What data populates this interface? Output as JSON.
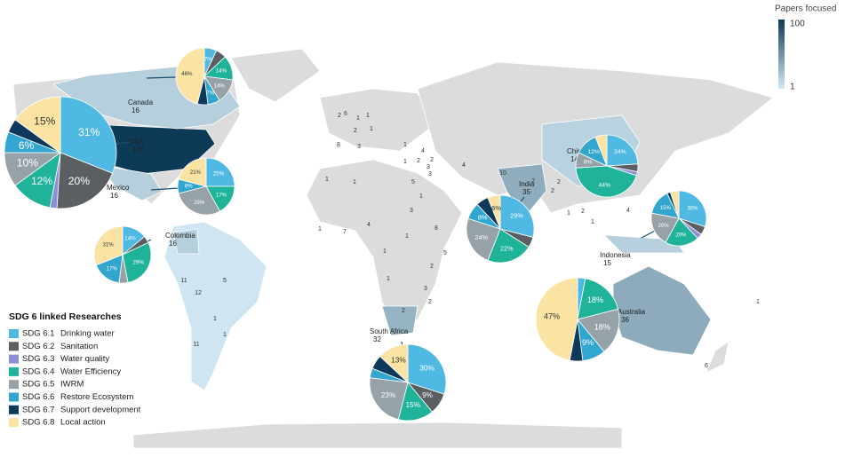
{
  "legend_scale": {
    "title": "Papers focused",
    "max": 100,
    "min": 1,
    "colors": [
      "#d3e9f4",
      "#0d3b57"
    ]
  },
  "legend": {
    "title": "SDG 6 linked Researches",
    "items": [
      {
        "code": "SDG 6.1",
        "label": "Drinking water",
        "color": "#4fb9e3"
      },
      {
        "code": "SDG 6.2",
        "label": "Sanitation",
        "color": "#5b5f62"
      },
      {
        "code": "SDG 6.3",
        "label": "Water quality",
        "color": "#8c8fd6"
      },
      {
        "code": "SDG 6.4",
        "label": "Water Efficiency",
        "color": "#1fb39a"
      },
      {
        "code": "SDG 6.5",
        "label": "IWRM",
        "color": "#97a1a8"
      },
      {
        "code": "SDG 6.6",
        "label": "Restore Ecosystem",
        "color": "#32a6cf"
      },
      {
        "code": "SDG 6.7",
        "label": "Support development",
        "color": "#0d3a5a"
      },
      {
        "code": "SDG 6.8",
        "label": "Local action",
        "color": "#fbe3a3"
      }
    ]
  },
  "countries": [
    {
      "name": "USA",
      "count": 100,
      "pie": {
        "values": [
          31,
          20,
          2,
          12,
          10,
          6,
          4,
          15
        ],
        "value_labels": [
          "31%",
          "20%",
          null,
          "12%",
          "10%",
          "6%",
          null,
          "15%"
        ]
      }
    },
    {
      "name": "Canada",
      "count": 16,
      "pie": {
        "values": [
          7,
          6,
          null,
          14,
          14,
          7,
          6,
          46
        ],
        "value_labels": [
          "7%",
          null,
          null,
          "14%",
          "14%",
          "7%",
          null,
          "46%"
        ]
      }
    },
    {
      "name": "Mexico",
      "count": 16,
      "pie": {
        "values": [
          25,
          null,
          null,
          17,
          29,
          8,
          null,
          21
        ],
        "value_labels": [
          "25%",
          null,
          null,
          "17%",
          "29%",
          "8%",
          null,
          "21%"
        ]
      }
    },
    {
      "name": "Colombia",
      "count": 16,
      "pie": {
        "values": [
          14,
          4,
          null,
          29,
          5,
          17,
          null,
          31
        ],
        "value_labels": [
          "14%",
          null,
          null,
          "29%",
          null,
          "17%",
          null,
          "31%"
        ]
      }
    },
    {
      "name": "China",
      "count": 14,
      "pie": {
        "values": [
          24,
          4,
          2,
          44,
          8,
          12,
          null,
          6
        ],
        "value_labels": [
          "24%",
          null,
          null,
          "44%",
          "8%",
          "12%",
          null,
          null
        ]
      }
    },
    {
      "name": "India",
      "count": 35,
      "pie": {
        "values": [
          29,
          5,
          null,
          22,
          24,
          8,
          6,
          6
        ],
        "value_labels": [
          "29%",
          null,
          null,
          "22%",
          "24%",
          "8%",
          null,
          "6%"
        ]
      }
    },
    {
      "name": "Indonesia",
      "count": 15,
      "pie": {
        "values": [
          30,
          5,
          3,
          20,
          20,
          15,
          2,
          5
        ],
        "value_labels": [
          "30%",
          null,
          null,
          "20%",
          "20%",
          "15%",
          null,
          null
        ]
      }
    },
    {
      "name": "Australia",
      "count": 36,
      "pie": {
        "values": [
          3,
          null,
          null,
          18,
          18,
          9,
          5,
          47
        ],
        "value_labels": [
          null,
          null,
          null,
          "18%",
          "18%",
          "9%",
          null,
          "47%"
        ]
      }
    },
    {
      "name": "South Africa",
      "count": 32,
      "pie": {
        "values": [
          30,
          9,
          null,
          15,
          23,
          4,
          6,
          13
        ],
        "value_labels": [
          "30%",
          "9%",
          null,
          "15%",
          "23%",
          null,
          null,
          "13%"
        ]
      }
    }
  ],
  "map_counts": [
    2,
    6,
    1,
    1,
    2,
    1,
    8,
    3,
    1,
    4,
    2,
    2,
    3,
    3,
    4,
    10,
    1,
    1,
    1,
    5,
    1,
    3,
    1,
    8,
    5,
    1,
    2,
    3,
    1,
    2,
    2,
    1,
    7,
    4,
    2,
    2,
    2,
    2,
    1,
    1,
    4,
    5,
    11,
    12,
    1,
    11,
    1,
    1,
    6
  ]
}
